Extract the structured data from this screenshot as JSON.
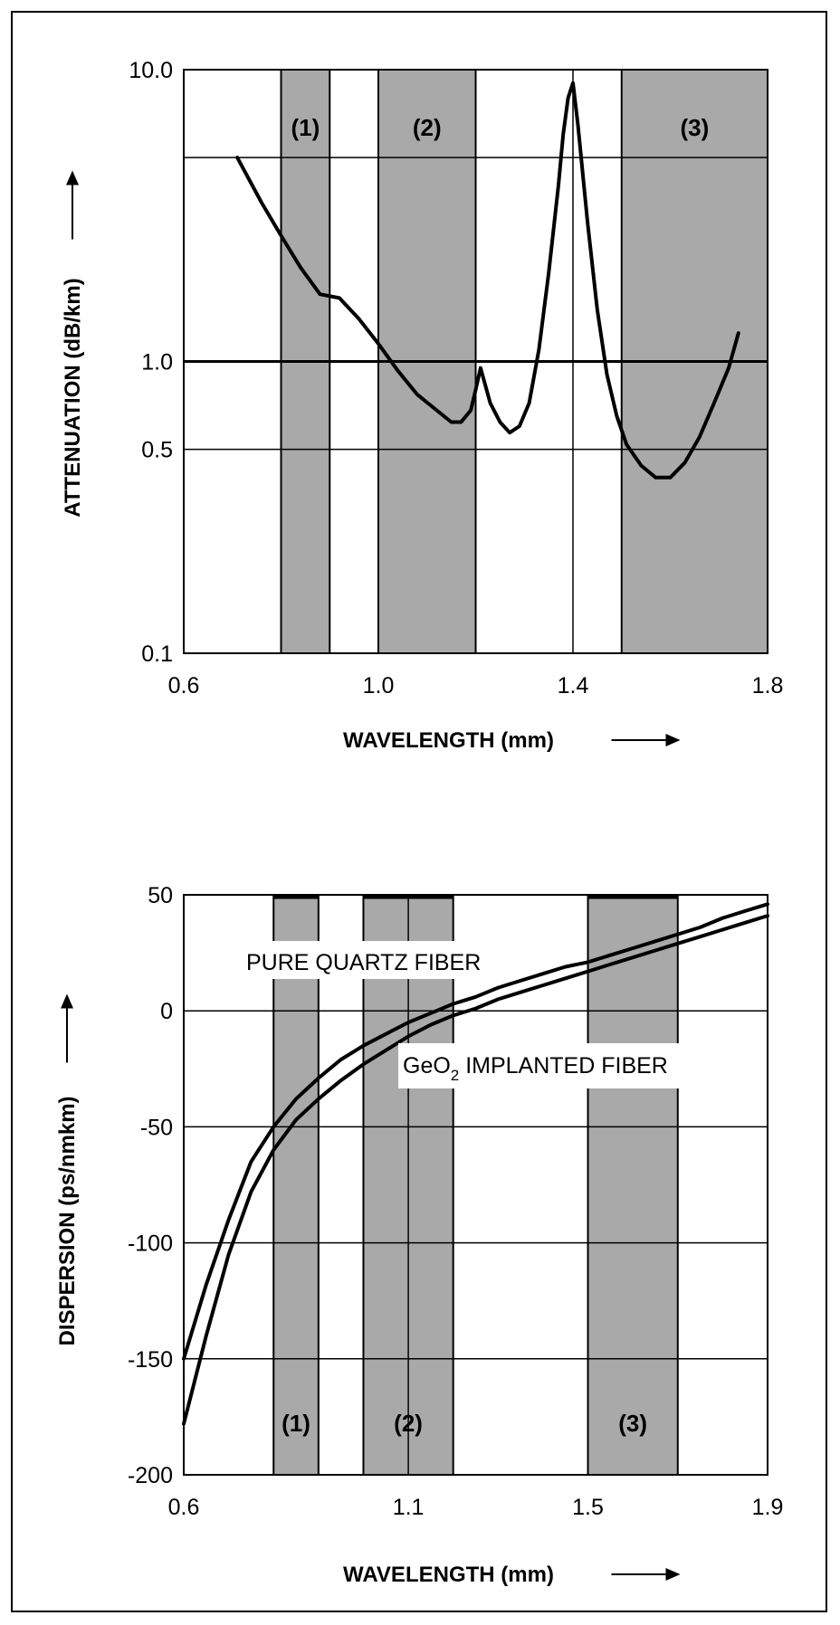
{
  "chart_data": [
    {
      "type": "line",
      "title": "",
      "xlabel": "WAVELENGTH (mm)",
      "ylabel": "ATTENUATION (dB/km)",
      "xlim": [
        0.6,
        1.8
      ],
      "ylim": [
        0.1,
        10.0
      ],
      "yscale": "log",
      "grid": true,
      "x_ticks": [
        {
          "value": 0.6,
          "label": "0.6"
        },
        {
          "value": 1.0,
          "label": "1.0"
        },
        {
          "value": 1.4,
          "label": "1.4"
        },
        {
          "value": 1.8,
          "label": "1.8"
        }
      ],
      "y_ticks": [
        {
          "value": 0.1,
          "label": "0.1"
        },
        {
          "value": 0.5,
          "label": "0.5"
        },
        {
          "value": 1.0,
          "label": "1.0"
        },
        {
          "value": 10.0,
          "label": "10.0"
        }
      ],
      "bands": [
        {
          "label": "(1)",
          "x": [
            0.8,
            0.9
          ]
        },
        {
          "label": "(2)",
          "x": [
            1.0,
            1.2
          ]
        },
        {
          "label": "(3)",
          "x": [
            1.5,
            1.8
          ]
        }
      ],
      "band_color": "#a9a9a9",
      "series": [
        {
          "color": "#000000",
          "x": [
            0.71,
            0.76,
            0.8,
            0.84,
            0.88,
            0.92,
            0.96,
            1.0,
            1.04,
            1.08,
            1.12,
            1.15,
            1.17,
            1.19,
            1.2,
            1.21,
            1.23,
            1.25,
            1.27,
            1.29,
            1.31,
            1.33,
            1.35,
            1.37,
            1.38,
            1.39,
            1.4,
            1.41,
            1.43,
            1.45,
            1.47,
            1.49,
            1.51,
            1.54,
            1.57,
            1.6,
            1.63,
            1.66,
            1.69,
            1.72,
            1.74
          ],
          "values": [
            5.0,
            3.5,
            2.7,
            2.1,
            1.7,
            1.65,
            1.4,
            1.15,
            0.93,
            0.77,
            0.68,
            0.62,
            0.62,
            0.68,
            0.8,
            0.95,
            0.72,
            0.62,
            0.57,
            0.6,
            0.72,
            1.1,
            2.0,
            4.0,
            6.0,
            8.0,
            9.0,
            6.5,
            3.0,
            1.5,
            0.9,
            0.65,
            0.52,
            0.44,
            0.4,
            0.4,
            0.45,
            0.55,
            0.72,
            0.95,
            1.25
          ]
        }
      ]
    },
    {
      "type": "line",
      "title": "",
      "xlabel": "WAVELENGTH (mm)",
      "ylabel": "DISPERSION (ps/nmkm)",
      "xlim": [
        0.6,
        1.9
      ],
      "ylim": [
        -200,
        50
      ],
      "grid": true,
      "x_ticks": [
        {
          "value": 0.6,
          "label": "0.6"
        },
        {
          "value": 1.1,
          "label": "1.1"
        },
        {
          "value": 1.5,
          "label": "1.5"
        },
        {
          "value": 1.9,
          "label": "1.9"
        }
      ],
      "y_ticks": [
        {
          "value": 50,
          "label": "50"
        },
        {
          "value": 0,
          "label": "0"
        },
        {
          "value": -50,
          "label": "-50"
        },
        {
          "value": -100,
          "label": "-100"
        },
        {
          "value": -150,
          "label": "-150"
        },
        {
          "value": -200,
          "label": "-200"
        }
      ],
      "bands": [
        {
          "label": "(1)",
          "x": [
            0.8,
            0.9
          ]
        },
        {
          "label": "(2)",
          "x": [
            1.0,
            1.2
          ]
        },
        {
          "label": "(3)",
          "x": [
            1.5,
            1.7
          ]
        }
      ],
      "band_color": "#a9a9a9",
      "series": [
        {
          "name": "PURE QUARTZ FIBER",
          "color": "#000000",
          "x": [
            0.6,
            0.65,
            0.7,
            0.75,
            0.8,
            0.85,
            0.9,
            0.95,
            1.0,
            1.05,
            1.1,
            1.15,
            1.2,
            1.25,
            1.3,
            1.35,
            1.4,
            1.45,
            1.5,
            1.55,
            1.6,
            1.65,
            1.7,
            1.75,
            1.8,
            1.85,
            1.9
          ],
          "values": [
            -150,
            -118,
            -90,
            -65,
            -50,
            -38,
            -29,
            -21,
            -15,
            -10,
            -5,
            -1,
            3,
            6,
            10,
            13,
            16,
            19,
            21,
            24,
            27,
            30,
            33,
            36,
            40,
            43,
            46
          ]
        },
        {
          "name": "GeO2 IMPLANTED FIBER",
          "color": "#000000",
          "x": [
            0.6,
            0.65,
            0.7,
            0.75,
            0.8,
            0.85,
            0.9,
            0.95,
            1.0,
            1.05,
            1.1,
            1.15,
            1.2,
            1.25,
            1.3,
            1.35,
            1.4,
            1.45,
            1.5,
            1.55,
            1.6,
            1.65,
            1.7,
            1.75,
            1.8,
            1.85,
            1.9
          ],
          "values": [
            -178,
            -140,
            -105,
            -78,
            -60,
            -47,
            -38,
            -30,
            -23,
            -17,
            -11,
            -6,
            -2,
            1,
            5,
            8,
            11,
            14,
            17,
            20,
            23,
            26,
            29,
            32,
            35,
            38,
            41
          ]
        }
      ],
      "annotations": [
        {
          "text": "PURE QUARTZ FIBER"
        },
        {
          "text": "GeO",
          "sub": "2",
          "tail": " IMPLANTED FIBER"
        }
      ]
    }
  ]
}
